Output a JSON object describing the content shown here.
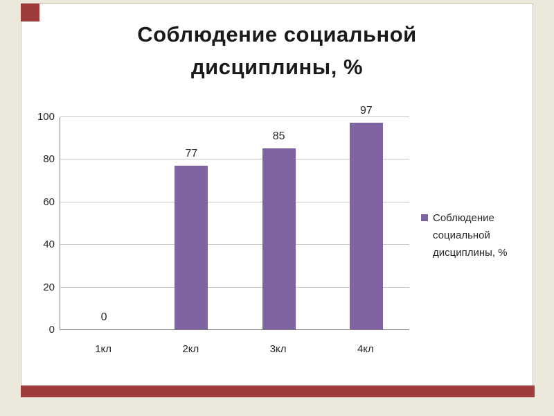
{
  "chart_data": {
    "type": "bar",
    "title": "Соблюдение социальной дисциплины, %",
    "title_lines": [
      "Соблюдение социальной",
      "дисциплины, %"
    ],
    "categories": [
      "1кл",
      "2кл",
      "3кл",
      "4кл"
    ],
    "values": [
      0,
      77,
      85,
      97
    ],
    "data_labels": [
      "0",
      "77",
      "85",
      "97"
    ],
    "xlabel": "",
    "ylabel": "",
    "ylim": [
      0,
      100
    ],
    "yticks": [
      0,
      20,
      40,
      60,
      80,
      100
    ],
    "grid": "horizontal",
    "legend_position": "right",
    "legend_lines": [
      "Соблюдение",
      "социальной",
      "дисциплины, %"
    ]
  },
  "colors": {
    "bar": "#8064A2",
    "accent_red": "#9E3B3B",
    "background": "#ECE9DC",
    "slide_background": "#FFFFFF",
    "grid_line": "#C6C6C6",
    "axis_line": "#808080",
    "text": "#262626"
  }
}
